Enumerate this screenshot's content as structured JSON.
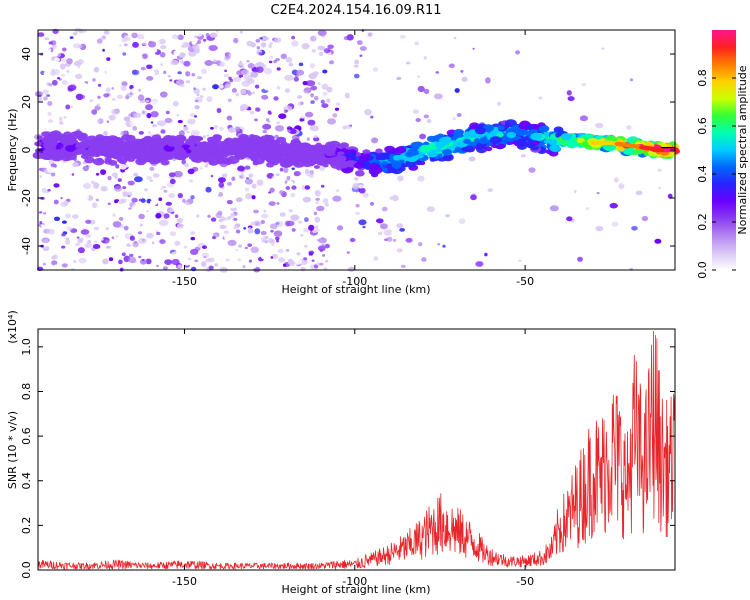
{
  "page": {
    "title": "C2E4.2024.154.16.09.R11"
  },
  "colors": {
    "signal_line": "#e8262a",
    "spectrogram_colormap": [
      "#ffffff",
      "#d9c7f5",
      "#b386f0",
      "#8a3cf0",
      "#6a00ff",
      "#2a24ff",
      "#0066ff",
      "#00ccff",
      "#00ffb0",
      "#33ff33",
      "#ccff00",
      "#ffd000",
      "#ff7a00",
      "#ff2020",
      "#ff1493"
    ]
  },
  "chart_data": [
    {
      "type": "heatmap",
      "title": "C2E4.2024.154.16.09.R11",
      "xlabel": "Height of straight line (km)",
      "ylabel": "Frequency (Hz)",
      "xlim": [
        -193,
        -6
      ],
      "ylim": [
        -50,
        50
      ],
      "xticks": [
        -150,
        -100,
        -50
      ],
      "yticks": [
        -40,
        -20,
        0,
        20,
        40
      ],
      "xtick_labels": [
        "-150",
        "-100",
        "-50"
      ],
      "ytick_labels": [
        "-40",
        "-20",
        "0",
        "20",
        "40"
      ],
      "colorbar": {
        "label": "Normalized spectral amplitude",
        "range": [
          0,
          1
        ],
        "ticks": [
          0.0,
          0.2,
          0.4,
          0.6,
          0.8
        ],
        "tick_labels": [
          "0.0",
          "0.2",
          "0.4",
          "0.6",
          "0.8"
        ]
      },
      "signal_trace": {
        "x": [
          -193,
          -180,
          -170,
          -160,
          -150,
          -140,
          -130,
          -120,
          -110,
          -100,
          -95,
          -90,
          -85,
          -80,
          -75,
          -70,
          -65,
          -60,
          -55,
          -50,
          -45,
          -40,
          -35,
          -30,
          -25,
          -20,
          -15,
          -10,
          -6
        ],
        "frequency": [
          2,
          1,
          0,
          0,
          1,
          0,
          0,
          -1,
          -2,
          -4,
          -5,
          -5,
          -3,
          -1,
          1,
          3,
          5,
          6,
          7,
          7,
          5,
          4,
          4,
          3,
          3,
          2,
          1,
          0,
          0
        ],
        "amplitude": [
          0.25,
          0.2,
          0.15,
          0.15,
          0.2,
          0.15,
          0.15,
          0.15,
          0.2,
          0.3,
          0.4,
          0.45,
          0.5,
          0.5,
          0.55,
          0.5,
          0.5,
          0.5,
          0.45,
          0.45,
          0.5,
          0.6,
          0.7,
          0.75,
          0.8,
          0.85,
          0.9,
          0.95,
          1.0
        ]
      }
    },
    {
      "type": "line",
      "xlabel": "Height of straight line (km)",
      "ylabel": "SNR (10 * v/v)",
      "y_multiplier": "(x10⁴)",
      "xlim": [
        -193,
        -6
      ],
      "ylim": [
        0,
        1.08
      ],
      "xticks": [
        -150,
        -100,
        -50
      ],
      "yticks": [
        0.0,
        0.2,
        0.4,
        0.6,
        0.8,
        1.0
      ],
      "xtick_labels": [
        "-150",
        "-100",
        "-50"
      ],
      "ytick_labels": [
        "0.0",
        "0.2",
        "0.4",
        "0.6",
        "0.8",
        "1.0"
      ],
      "series": [
        {
          "x": [
            -193,
            -180,
            -170,
            -160,
            -150,
            -140,
            -130,
            -120,
            -110,
            -105,
            -100,
            -95,
            -90,
            -85,
            -80,
            -78,
            -75,
            -72,
            -70,
            -68,
            -65,
            -62,
            -60,
            -55,
            -50,
            -45,
            -42,
            -40,
            -38,
            -35,
            -32,
            -30,
            -28,
            -25,
            -22,
            -20,
            -18,
            -15,
            -12,
            -10,
            -8,
            -6
          ],
          "y": [
            0.03,
            0.02,
            0.03,
            0.02,
            0.03,
            0.02,
            0.02,
            0.02,
            0.02,
            0.03,
            0.03,
            0.06,
            0.09,
            0.13,
            0.19,
            0.23,
            0.27,
            0.25,
            0.22,
            0.2,
            0.16,
            0.1,
            0.08,
            0.05,
            0.05,
            0.07,
            0.12,
            0.24,
            0.28,
            0.38,
            0.48,
            0.58,
            0.52,
            0.68,
            0.62,
            0.48,
            0.78,
            0.58,
            0.92,
            0.62,
            0.58,
            0.64
          ]
        }
      ]
    }
  ]
}
